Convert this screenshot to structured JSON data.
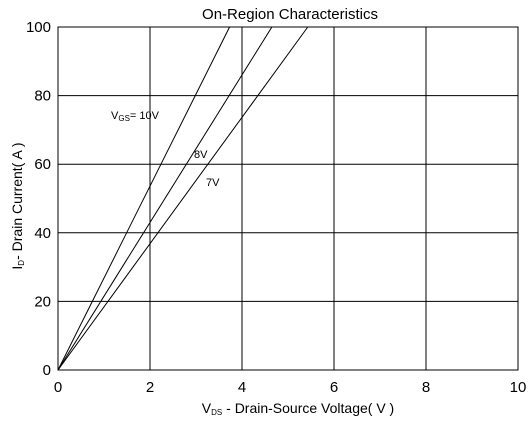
{
  "chart_data": {
    "type": "line",
    "title": "On-Region Characteristics",
    "xlabel": {
      "prefix": "V",
      "sub": "DS",
      "text": " - Drain-Source Voltage( V )"
    },
    "ylabel": {
      "prefix": "I",
      "sub": "D",
      "text": "- Drain Current( A )"
    },
    "xlim": [
      0,
      10
    ],
    "ylim": [
      0,
      100
    ],
    "xticks": [
      0,
      2,
      4,
      6,
      8,
      10
    ],
    "yticks": [
      0,
      20,
      40,
      60,
      80,
      100
    ],
    "grid": true,
    "series": [
      {
        "name": "10V",
        "x": [
          0,
          3.73
        ],
        "y": [
          0,
          100
        ]
      },
      {
        "name": "8V",
        "x": [
          0,
          4.65
        ],
        "y": [
          0,
          100
        ]
      },
      {
        "name": "7V",
        "x": [
          0,
          5.43
        ],
        "y": [
          0,
          100
        ]
      }
    ],
    "annotations": [
      {
        "label_prefix": "V",
        "label_sub": "GS",
        "text": "= 10V",
        "series": "10V"
      },
      {
        "text": "8V",
        "series": "8V"
      },
      {
        "text": "7V",
        "series": "7V"
      }
    ]
  }
}
